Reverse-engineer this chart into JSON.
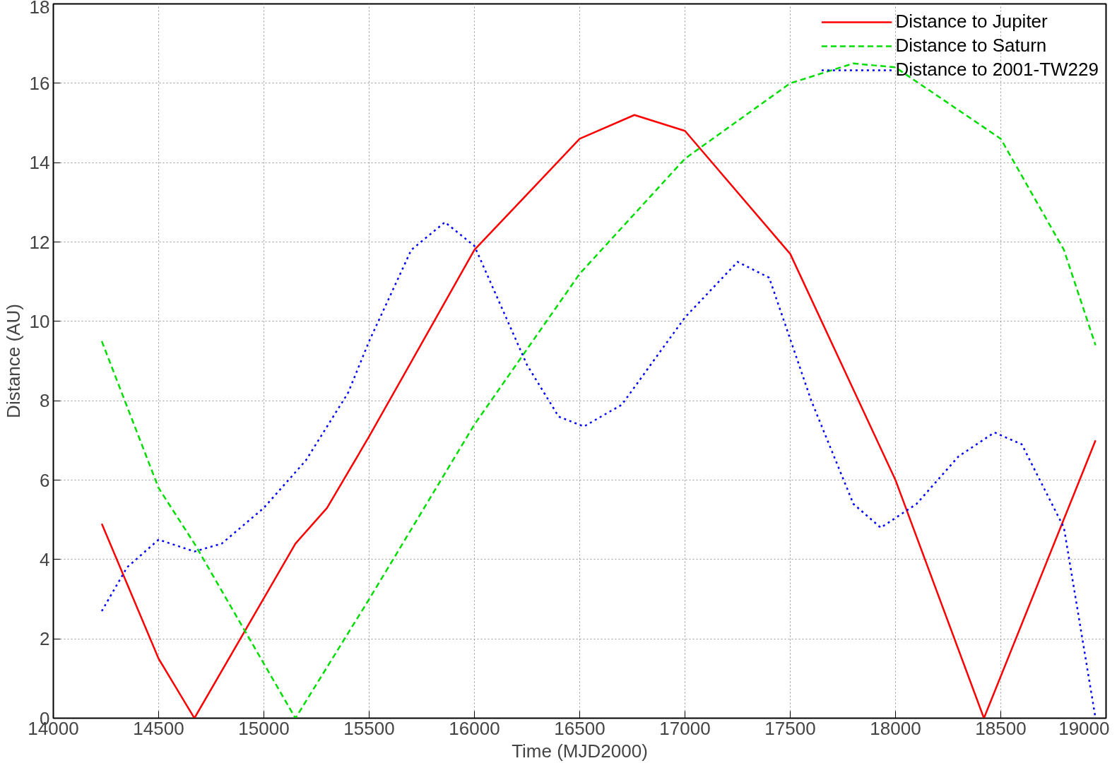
{
  "chart_data": {
    "type": "line",
    "xlabel": "Time (MJD2000)",
    "ylabel": "Distance (AU)",
    "xlim": [
      14000,
      19000
    ],
    "xticks": [
      14000,
      14500,
      15000,
      15500,
      16000,
      16500,
      17000,
      17500,
      18000,
      18500,
      19000
    ],
    "ylim": [
      0,
      18
    ],
    "yticks": [
      0,
      2,
      4,
      6,
      8,
      10,
      12,
      14,
      16,
      18
    ],
    "grid": true,
    "legend": "top right",
    "series": [
      {
        "name": "Distance to Jupiter",
        "color": "#ff0000",
        "line_style": "solid",
        "x": [
          14230,
          14500,
          14670,
          15150,
          15300,
          15500,
          16000,
          16500,
          16760,
          17000,
          17500,
          18000,
          18420,
          18950
        ],
        "values": [
          4.9,
          1.5,
          0,
          4.4,
          5.3,
          7.1,
          11.8,
          14.6,
          15.2,
          14.8,
          11.7,
          6.0,
          0,
          7.0
        ]
      },
      {
        "name": "Distance to Saturn",
        "color": "#00dd00",
        "line_style": "dashed",
        "x": [
          14230,
          14500,
          14670,
          15150,
          15500,
          16000,
          16500,
          17000,
          17500,
          17800,
          18000,
          18500,
          18800,
          18950
        ],
        "values": [
          9.5,
          5.8,
          4.4,
          0,
          3.0,
          7.4,
          11.2,
          14.1,
          16.0,
          16.5,
          16.4,
          14.6,
          11.8,
          9.4
        ]
      },
      {
        "name": "Distance to 2001-TW229",
        "color": "#0000ff",
        "line_style": "dotted",
        "x": [
          14230,
          14350,
          14500,
          14670,
          14800,
          15000,
          15200,
          15400,
          15500,
          15700,
          15860,
          16000,
          16250,
          16400,
          16520,
          16700,
          17000,
          17250,
          17400,
          17600,
          17800,
          17930,
          18100,
          18300,
          18470,
          18600,
          18800,
          18950
        ],
        "values": [
          2.7,
          3.8,
          4.5,
          4.2,
          4.4,
          5.3,
          6.5,
          8.2,
          9.5,
          11.8,
          12.5,
          11.9,
          8.9,
          7.6,
          7.35,
          7.9,
          10.1,
          11.5,
          11.1,
          8.0,
          5.4,
          4.8,
          5.4,
          6.6,
          7.2,
          6.9,
          4.8,
          0.0
        ]
      }
    ]
  }
}
